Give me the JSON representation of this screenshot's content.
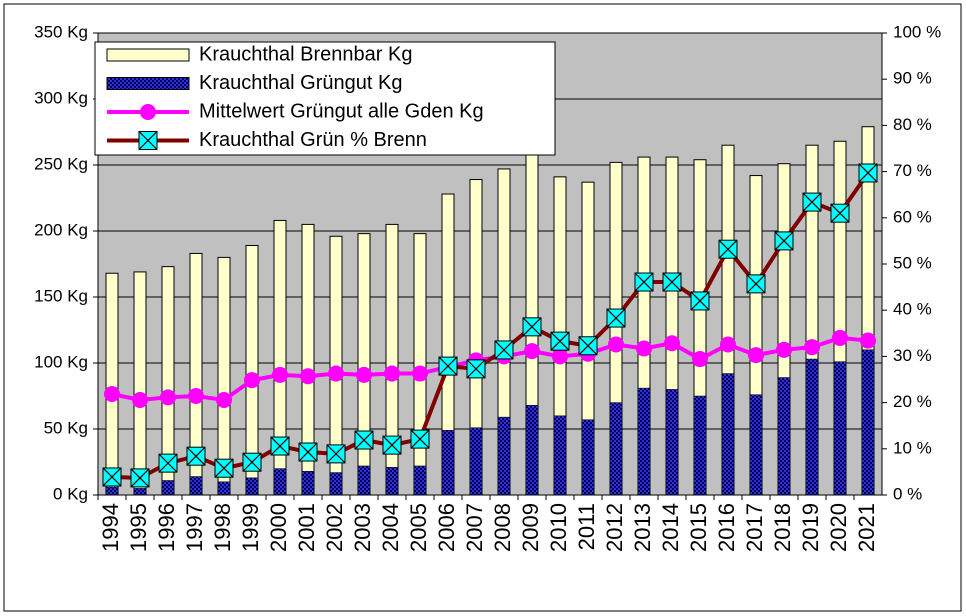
{
  "chart_data": {
    "type": "bar",
    "categories": [
      "1994",
      "1995",
      "1996",
      "1997",
      "1998",
      "1999",
      "2000",
      "2001",
      "2002",
      "2003",
      "2004",
      "2005",
      "2006",
      "2007",
      "2008",
      "2009",
      "2010",
      "2011",
      "2012",
      "2013",
      "2014",
      "2015",
      "2016",
      "2017",
      "2018",
      "2019",
      "2020",
      "2021"
    ],
    "series": [
      {
        "name": "Krauchthal Brennbar Kg",
        "type": "bar",
        "color": "#ffffcc",
        "values": [
          168,
          169,
          173,
          183,
          180,
          189,
          208,
          205,
          196,
          198,
          205,
          198,
          228,
          239,
          247,
          258,
          241,
          237,
          252,
          256,
          256,
          254,
          265,
          242,
          251,
          265,
          268,
          279
        ]
      },
      {
        "name": "Krauchthal Grüngut Kg",
        "type": "bar",
        "color": "#3333cc",
        "values": [
          6,
          5,
          11,
          14,
          10,
          13,
          20,
          18,
          17,
          22,
          21,
          22,
          49,
          51,
          59,
          68,
          60,
          57,
          70,
          81,
          80,
          75,
          92,
          76,
          89,
          103,
          101,
          110
        ]
      },
      {
        "name": "Mittelwert Grüngut alle Gden Kg",
        "type": "line",
        "color": "#ff00ff",
        "marker": "circle",
        "values": [
          76.5,
          72,
          74,
          75,
          72,
          87,
          91,
          90,
          92,
          91,
          92,
          92,
          97,
          102,
          105,
          109,
          105,
          107,
          114,
          111,
          115,
          103,
          114,
          106,
          110,
          112,
          119,
          117
        ]
      },
      {
        "name": "Krauchthal Grün % Brenn",
        "type": "line",
        "color": "#800000",
        "marker": "square-x",
        "marker_color": "#00ffff",
        "axis": "y2",
        "values": [
          3.9,
          3.7,
          6.9,
          8.4,
          5.8,
          7.1,
          10.6,
          9.3,
          8.9,
          11.9,
          10.8,
          12.1,
          27.9,
          27.3,
          31.4,
          36.4,
          33.3,
          32.3,
          38.3,
          46.1,
          46.1,
          42,
          53.2,
          45.7,
          55,
          63.4,
          61,
          69.7
        ]
      }
    ],
    "ylim": [
      0,
      350
    ],
    "yticks": [
      {
        "value": 0,
        "label": "0 Kg"
      },
      {
        "value": 50,
        "label": "50 Kg"
      },
      {
        "value": 100,
        "label": "100 Kg"
      },
      {
        "value": 150,
        "label": "150 Kg"
      },
      {
        "value": 200,
        "label": "200 Kg"
      },
      {
        "value": 250,
        "label": "250 Kg"
      },
      {
        "value": 300,
        "label": "300 Kg"
      },
      {
        "value": 350,
        "label": "350 Kg"
      }
    ],
    "y2lim": [
      0,
      100
    ],
    "y2ticks": [
      {
        "value": 0,
        "label": "0 %"
      },
      {
        "value": 10,
        "label": "10 %"
      },
      {
        "value": 20,
        "label": "20 %"
      },
      {
        "value": 30,
        "label": "30 %"
      },
      {
        "value": 40,
        "label": "40 %"
      },
      {
        "value": 50,
        "label": "50 %"
      },
      {
        "value": 60,
        "label": "60 %"
      },
      {
        "value": 70,
        "label": "70 %"
      },
      {
        "value": 80,
        "label": "80 %"
      },
      {
        "value": 90,
        "label": "90 %"
      },
      {
        "value": 100,
        "label": "100 %"
      }
    ],
    "grid": true,
    "plot_background": "#c0c0c0",
    "legend": "upper left"
  }
}
